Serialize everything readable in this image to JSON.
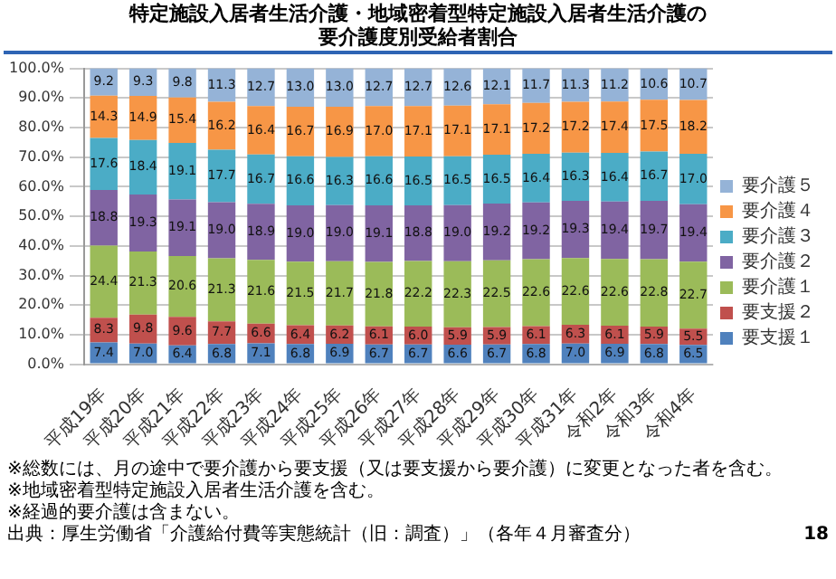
{
  "chart_data": {
    "type": "bar",
    "title": "特定施設入居者生活介護・地域密着型特定施設入居者生活介護の要介護度別受給者割合",
    "categories": [
      "平成19年",
      "平成20年",
      "平成21年",
      "平成22年",
      "平成23年",
      "平成24年",
      "平成25年",
      "平成26年",
      "平成27年",
      "平成28年",
      "平成29年",
      "平成30年",
      "平成31年",
      "令和2年",
      "令和3年",
      "令和4年"
    ],
    "stacked": true,
    "grid": "y",
    "legend": "right",
    "ylim": [
      0,
      100
    ],
    "yticks": [
      {
        "value": 0,
        "label": "0.0%"
      },
      {
        "value": 10,
        "label": "10.0%"
      },
      {
        "value": 20,
        "label": "20.0%"
      },
      {
        "value": 30,
        "label": "30.0%"
      },
      {
        "value": 40,
        "label": "40.0%"
      },
      {
        "value": 50,
        "label": "50.0%"
      },
      {
        "value": 60,
        "label": "60.0%"
      },
      {
        "value": 70,
        "label": "70.0%"
      },
      {
        "value": 80,
        "label": "80.0%"
      },
      {
        "value": 90,
        "label": "90.0%"
      },
      {
        "value": 100,
        "label": "100.0%"
      }
    ],
    "series": [
      {
        "name": "要支援１",
        "color": "#4f81bd",
        "values": [
          7.4,
          7.0,
          6.4,
          6.8,
          7.1,
          6.8,
          6.9,
          6.7,
          6.7,
          6.6,
          6.7,
          6.8,
          7.0,
          6.9,
          6.8,
          6.5
        ],
        "value_labels": [
          "7.4",
          "7.0",
          "6.4",
          "6.8",
          "7.1",
          "6.8",
          "6.9",
          "6.7",
          "6.7",
          "6.6",
          "6.7",
          "6.8",
          "7.0",
          "6.9",
          "6.8",
          "6.5"
        ]
      },
      {
        "name": "要支援２",
        "color": "#c0504d",
        "values": [
          8.3,
          9.8,
          9.6,
          7.7,
          6.6,
          6.4,
          6.2,
          6.1,
          6.0,
          5.9,
          5.9,
          6.1,
          6.3,
          6.1,
          5.9,
          5.5
        ],
        "value_labels": [
          "8.3",
          "9.8",
          "9.6",
          "7.7",
          "6.6",
          "6.4",
          "6.2",
          "6.1",
          "6.0",
          "5.9",
          "5.9",
          "6.1",
          "6.3",
          "6.1",
          "5.9",
          "5.5"
        ]
      },
      {
        "name": "要介護１",
        "color": "#9bbb59",
        "values": [
          24.4,
          21.3,
          20.6,
          21.3,
          21.6,
          21.5,
          21.7,
          21.8,
          22.2,
          22.3,
          22.5,
          22.6,
          22.6,
          22.6,
          22.8,
          22.7
        ],
        "value_labels": [
          "24.4",
          "21.3",
          "20.6",
          "21.3",
          "21.6",
          "21.5",
          "21.7",
          "21.8",
          "22.2",
          "22.3",
          "22.5",
          "22.6",
          "22.6",
          "22.6",
          "22.8",
          "22.7"
        ]
      },
      {
        "name": "要介護２",
        "color": "#8064a2",
        "values": [
          18.8,
          19.3,
          19.1,
          19.0,
          18.9,
          19.0,
          19.0,
          19.1,
          18.8,
          19.0,
          19.2,
          19.2,
          19.3,
          19.4,
          19.7,
          19.4
        ],
        "value_labels": [
          "18.8",
          "19.3",
          "19.1",
          "19.0",
          "18.9",
          "19.0",
          "19.0",
          "19.1",
          "18.8",
          "19.0",
          "19.2",
          "19.2",
          "19.3",
          "19.4",
          "19.7",
          "19.4"
        ]
      },
      {
        "name": "要介護３",
        "color": "#4bacc6",
        "values": [
          17.6,
          18.4,
          19.1,
          17.7,
          16.7,
          16.6,
          16.3,
          16.6,
          16.5,
          16.5,
          16.5,
          16.4,
          16.3,
          16.4,
          16.7,
          17.0
        ],
        "value_labels": [
          "17.6",
          "18.4",
          "19.1",
          "17.7",
          "16.7",
          "16.6",
          "16.3",
          "16.6",
          "16.5",
          "16.5",
          "16.5",
          "16.4",
          "16.3",
          "16.4",
          "16.7",
          "17.0"
        ]
      },
      {
        "name": "要介護４",
        "color": "#f79646",
        "values": [
          14.3,
          14.9,
          15.4,
          16.2,
          16.4,
          16.7,
          16.9,
          17.0,
          17.1,
          17.1,
          17.1,
          17.2,
          17.2,
          17.4,
          17.5,
          18.2
        ],
        "value_labels": [
          "14.3",
          "14.9",
          "15.4",
          "16.2",
          "16.4",
          "16.7",
          "16.9",
          "17.0",
          "17.1",
          "17.1",
          "17.1",
          "17.2",
          "17.2",
          "17.4",
          "17.5",
          "18.2"
        ]
      },
      {
        "name": "要介護５",
        "color": "#95b3d7",
        "values": [
          9.2,
          9.3,
          9.8,
          11.3,
          12.7,
          13.0,
          13.0,
          12.7,
          12.7,
          12.6,
          12.1,
          11.7,
          11.3,
          11.2,
          10.6,
          10.7
        ],
        "value_labels": [
          "9.2",
          "9.3",
          "9.8",
          "11.3",
          "12.7",
          "13.0",
          "13.0",
          "12.7",
          "12.7",
          "12.6",
          "12.1",
          "11.7",
          "11.3",
          "11.2",
          "10.6",
          "10.7"
        ]
      }
    ],
    "annotations": [
      "※総数には、月の途中で要介護から要支援（又は要支援から要介護）に変更となった者を含む。",
      "※地域密着型特定施設入居者生活介護を含む。",
      "※経過的要介護は含まない。",
      "出典：厚生労働省「介護給付費等実態統計（旧：調査）」（各年４月審査分）",
      "18"
    ]
  }
}
